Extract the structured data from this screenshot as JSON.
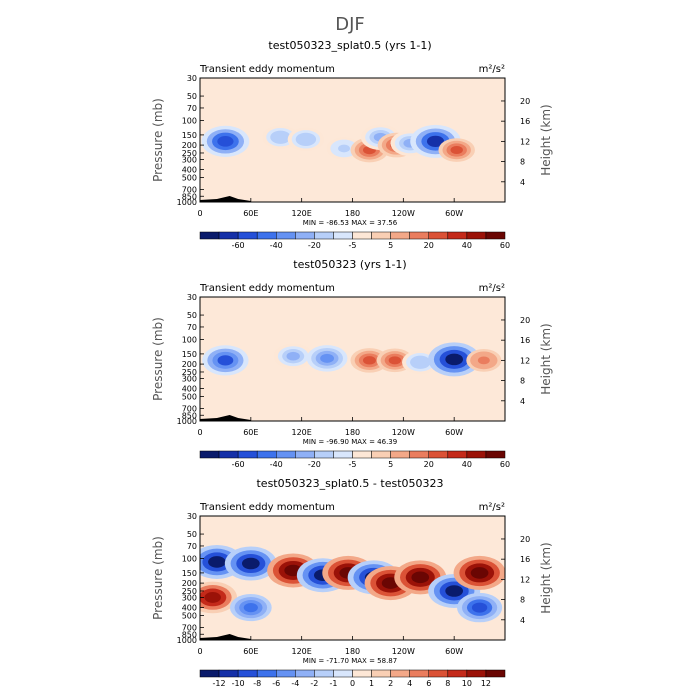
{
  "figure": {
    "super_title": "DJF"
  },
  "chart_data": [
    {
      "type": "heatmap",
      "title": "test050323_splat0.5 (yrs 1-1)",
      "left_label": "Transient eddy momentum",
      "right_label": "m²/s²",
      "ylabel": "Pressure (mb)",
      "y2label": "Height (km)",
      "pressure_ticks": [
        "30",
        "50",
        "70",
        "100",
        "150",
        "200",
        "250",
        "300",
        "400",
        "500",
        "700",
        "850",
        "1000"
      ],
      "pressure_values": [
        30,
        50,
        70,
        100,
        150,
        200,
        250,
        300,
        400,
        500,
        700,
        850,
        1000
      ],
      "height_ticks": [
        "4",
        "8",
        "12",
        "16",
        "20"
      ],
      "height_values": [
        4,
        8,
        12,
        16,
        20
      ],
      "lon_ticks": [
        "0",
        "60E",
        "120E",
        "180",
        "120W",
        "60W"
      ],
      "lon_values": [
        0,
        60,
        120,
        180,
        240,
        300
      ],
      "xlim": [
        0,
        360
      ],
      "ylim": [
        1000,
        30
      ],
      "min_max_label": "MIN = -86.53   MAX =  37.56",
      "colorbar_levels": [
        "-60",
        "-40",
        "-20",
        "-5",
        "5",
        "20",
        "40",
        "60"
      ],
      "colorbar_bins": 16,
      "features": [
        {
          "lon": 30,
          "p": 180,
          "value": -70
        },
        {
          "lon": 95,
          "p": 160,
          "value": -30
        },
        {
          "lon": 125,
          "p": 170,
          "value": -30
        },
        {
          "lon": 170,
          "p": 220,
          "value": -25
        },
        {
          "lon": 200,
          "p": 230,
          "value": 35
        },
        {
          "lon": 213,
          "p": 160,
          "value": -40
        },
        {
          "lon": 232,
          "p": 200,
          "value": 35
        },
        {
          "lon": 248,
          "p": 190,
          "value": -40
        },
        {
          "lon": 278,
          "p": 180,
          "value": -80
        },
        {
          "lon": 303,
          "p": 230,
          "value": 30
        }
      ]
    },
    {
      "type": "heatmap",
      "title": "test050323 (yrs 1-1)",
      "left_label": "Transient eddy momentum",
      "right_label": "m²/s²",
      "ylabel": "Pressure (mb)",
      "y2label": "Height (km)",
      "pressure_ticks": [
        "30",
        "50",
        "70",
        "100",
        "150",
        "200",
        "250",
        "300",
        "400",
        "500",
        "700",
        "850",
        "1000"
      ],
      "pressure_values": [
        30,
        50,
        70,
        100,
        150,
        200,
        250,
        300,
        400,
        500,
        700,
        850,
        1000
      ],
      "height_ticks": [
        "4",
        "8",
        "12",
        "16",
        "20"
      ],
      "height_values": [
        4,
        8,
        12,
        16,
        20
      ],
      "lon_ticks": [
        "0",
        "60E",
        "120E",
        "180",
        "120W",
        "60W"
      ],
      "lon_values": [
        0,
        60,
        120,
        180,
        240,
        300
      ],
      "xlim": [
        0,
        360
      ],
      "ylim": [
        1000,
        30
      ],
      "min_max_label": "MIN = -96.90   MAX =  46.39",
      "colorbar_levels": [
        "-60",
        "-40",
        "-20",
        "-5",
        "5",
        "20",
        "40",
        "60"
      ],
      "colorbar_bins": 16,
      "features": [
        {
          "lon": 30,
          "p": 180,
          "value": -65
        },
        {
          "lon": 110,
          "p": 160,
          "value": -40
        },
        {
          "lon": 150,
          "p": 170,
          "value": -45
        },
        {
          "lon": 200,
          "p": 180,
          "value": 35
        },
        {
          "lon": 230,
          "p": 180,
          "value": 30
        },
        {
          "lon": 260,
          "p": 190,
          "value": -30
        },
        {
          "lon": 300,
          "p": 175,
          "value": -85
        },
        {
          "lon": 335,
          "p": 180,
          "value": 25
        }
      ]
    },
    {
      "type": "heatmap",
      "title": "test050323_splat0.5 - test050323",
      "left_label": "Transient eddy momentum",
      "right_label": "m²/s²",
      "ylabel": "Pressure (mb)",
      "y2label": "Height (km)",
      "pressure_ticks": [
        "30",
        "50",
        "70",
        "100",
        "150",
        "200",
        "250",
        "300",
        "400",
        "500",
        "700",
        "850",
        "1000"
      ],
      "pressure_values": [
        30,
        50,
        70,
        100,
        150,
        200,
        250,
        300,
        400,
        500,
        700,
        850,
        1000
      ],
      "height_ticks": [
        "4",
        "8",
        "12",
        "16",
        "20"
      ],
      "height_values": [
        4,
        8,
        12,
        16,
        20
      ],
      "lon_ticks": [
        "0",
        "60E",
        "120E",
        "180",
        "120W",
        "60W"
      ],
      "lon_values": [
        0,
        60,
        120,
        180,
        240,
        300
      ],
      "xlim": [
        0,
        360
      ],
      "ylim": [
        1000,
        30
      ],
      "min_max_label": "MIN = -71.70   MAX =  58.87",
      "colorbar_levels": [
        "-12",
        "-10",
        "-8",
        "-6",
        "-4",
        "-2",
        "-1",
        "0",
        "1",
        "2",
        "4",
        "6",
        "8",
        "10",
        "12"
      ],
      "colorbar_bins": 16,
      "features": [
        {
          "lon": 20,
          "p": 110,
          "value": -14
        },
        {
          "lon": 60,
          "p": 115,
          "value": -14
        },
        {
          "lon": 110,
          "p": 140,
          "value": 14
        },
        {
          "lon": 145,
          "p": 160,
          "value": -14
        },
        {
          "lon": 175,
          "p": 150,
          "value": 14
        },
        {
          "lon": 205,
          "p": 170,
          "value": -14
        },
        {
          "lon": 225,
          "p": 200,
          "value": 14
        },
        {
          "lon": 260,
          "p": 170,
          "value": 14
        },
        {
          "lon": 300,
          "p": 250,
          "value": -14
        },
        {
          "lon": 330,
          "p": 150,
          "value": 14
        },
        {
          "lon": 15,
          "p": 300,
          "value": 12
        },
        {
          "lon": 60,
          "p": 400,
          "value": -8
        },
        {
          "lon": 330,
          "p": 400,
          "value": -10
        }
      ]
    }
  ],
  "colors": {
    "cmap": [
      "#0a1b6b",
      "#1530a8",
      "#2550d8",
      "#3d72ec",
      "#6592f3",
      "#8fb0f6",
      "#b7cff9",
      "#d8e6fc",
      "#fde7d6",
      "#f9cfb4",
      "#f3a888",
      "#ea7d5e",
      "#db5236",
      "#c42a1a",
      "#9b1208",
      "#6a0603"
    ],
    "plot_bg": "#fde8d8",
    "terrain": "#000000"
  }
}
